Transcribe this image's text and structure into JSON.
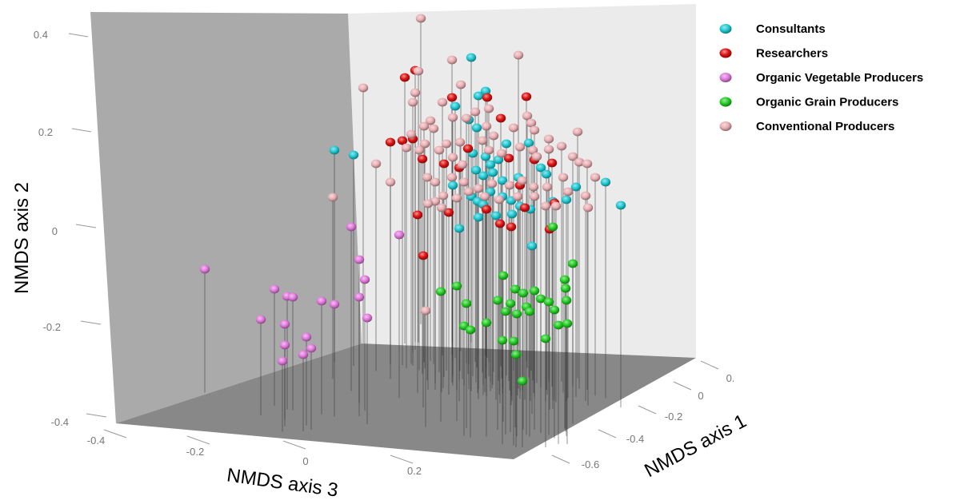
{
  "chart_data": {
    "type": "scatter",
    "subtype": "3d-scatter-with-drop-lines",
    "title": "",
    "xlabel": "NMDS axis 3",
    "ylabel": "NMDS axis 2",
    "zlabel": "NMDS axis 1",
    "x_ticks": [
      "-0.4",
      "-0.2",
      "0",
      "0.2"
    ],
    "y_ticks": [
      "0.4",
      "0.2",
      "0",
      "-0.2",
      "-0.4"
    ],
    "z_ticks": [
      "0.",
      "0",
      "-0.2",
      "-0.4",
      "-0.6"
    ],
    "ylim": [
      -0.4,
      0.45
    ],
    "legend_position": "top-right",
    "series": [
      {
        "name": "Consultants",
        "color": "#1ec8d2",
        "points": [
          [
            418,
            188
          ],
          [
            442,
            194
          ],
          [
            589,
            72
          ],
          [
            607,
            114
          ],
          [
            598,
            120
          ],
          [
            569,
            133
          ],
          [
            586,
            150
          ],
          [
            596,
            160
          ],
          [
            633,
            180
          ],
          [
            661,
            179
          ],
          [
            591,
            192
          ],
          [
            607,
            196
          ],
          [
            613,
            206
          ],
          [
            623,
            200
          ],
          [
            595,
            213
          ],
          [
            604,
            220
          ],
          [
            616,
            216
          ],
          [
            628,
            226
          ],
          [
            648,
            222
          ],
          [
            676,
            210
          ],
          [
            683,
            218
          ],
          [
            566,
            232
          ],
          [
            589,
            246
          ],
          [
            597,
            252
          ],
          [
            613,
            240
          ],
          [
            628,
            246
          ],
          [
            639,
            251
          ],
          [
            650,
            258
          ],
          [
            663,
            262
          ],
          [
            691,
            252
          ],
          [
            708,
            250
          ],
          [
            720,
            234
          ],
          [
            640,
            268
          ],
          [
            620,
            270
          ],
          [
            598,
            272
          ],
          [
            574,
            286
          ],
          [
            757,
            228
          ],
          [
            776,
            257
          ],
          [
            665,
            308
          ],
          [
            604,
            256
          ]
        ]
      },
      {
        "name": "Researchers",
        "color": "#dd1111",
        "points": [
          [
            506,
            97
          ],
          [
            519,
            88
          ],
          [
            565,
            122
          ],
          [
            609,
            122
          ],
          [
            626,
            148
          ],
          [
            658,
            121
          ],
          [
            488,
            178
          ],
          [
            503,
            176
          ],
          [
            516,
            174
          ],
          [
            528,
            199
          ],
          [
            555,
            205
          ],
          [
            574,
            210
          ],
          [
            585,
            186
          ],
          [
            636,
            198
          ],
          [
            668,
            200
          ],
          [
            690,
            204
          ],
          [
            693,
            254
          ],
          [
            687,
            287
          ],
          [
            608,
            262
          ],
          [
            625,
            280
          ],
          [
            639,
            284
          ],
          [
            656,
            260
          ],
          [
            522,
            269
          ],
          [
            561,
            266
          ],
          [
            529,
            320
          ],
          [
            650,
            232
          ]
        ]
      },
      {
        "name": "Organic Vegetable Producers",
        "color": "#e078dc",
        "points": [
          [
            256,
            337
          ],
          [
            499,
            294
          ],
          [
            439,
            284
          ],
          [
            449,
            325
          ],
          [
            456,
            350
          ],
          [
            343,
            362
          ],
          [
            359,
            371
          ],
          [
            366,
            372
          ],
          [
            402,
            377
          ],
          [
            418,
            381
          ],
          [
            449,
            372
          ],
          [
            459,
            398
          ],
          [
            326,
            400
          ],
          [
            356,
            406
          ],
          [
            383,
            422
          ],
          [
            389,
            436
          ],
          [
            379,
            444
          ],
          [
            356,
            432
          ],
          [
            353,
            452
          ]
        ]
      },
      {
        "name": "Organic Grain Producers",
        "color": "#22cc22",
        "points": [
          [
            691,
            284
          ],
          [
            716,
            330
          ],
          [
            706,
            350
          ],
          [
            629,
            345
          ],
          [
            571,
            358
          ],
          [
            551,
            365
          ],
          [
            644,
            362
          ],
          [
            654,
            367
          ],
          [
            668,
            364
          ],
          [
            707,
            361
          ],
          [
            583,
            380
          ],
          [
            622,
            376
          ],
          [
            638,
            380
          ],
          [
            658,
            384
          ],
          [
            676,
            374
          ],
          [
            686,
            378
          ],
          [
            708,
            376
          ],
          [
            632,
            390
          ],
          [
            646,
            393
          ],
          [
            662,
            390
          ],
          [
            693,
            388
          ],
          [
            608,
            404
          ],
          [
            580,
            408
          ],
          [
            698,
            407
          ],
          [
            709,
            405
          ],
          [
            588,
            413
          ],
          [
            628,
            426
          ],
          [
            642,
            427
          ],
          [
            682,
            424
          ],
          [
            645,
            444
          ],
          [
            653,
            477
          ]
        ]
      },
      {
        "name": "Conventional Producers",
        "color": "#e8aeb2",
        "points": [
          [
            526,
            23
          ],
          [
            565,
            75
          ],
          [
            648,
            69
          ],
          [
            523,
            89
          ],
          [
            454,
            110
          ],
          [
            519,
            116
          ],
          [
            516,
            128
          ],
          [
            553,
            128
          ],
          [
            576,
            106
          ],
          [
            594,
            140
          ],
          [
            611,
            136
          ],
          [
            566,
            147
          ],
          [
            538,
            151
          ],
          [
            583,
            148
          ],
          [
            530,
            158
          ],
          [
            542,
            161
          ],
          [
            514,
            168
          ],
          [
            508,
            185
          ],
          [
            531,
            180
          ],
          [
            558,
            180
          ],
          [
            575,
            178
          ],
          [
            603,
            176
          ],
          [
            617,
            170
          ],
          [
            642,
            160
          ],
          [
            659,
            145
          ],
          [
            664,
            154
          ],
          [
            668,
            163
          ],
          [
            686,
            174
          ],
          [
            702,
            183
          ],
          [
            722,
            165
          ],
          [
            524,
            188
          ],
          [
            549,
            188
          ],
          [
            566,
            197
          ],
          [
            578,
            206
          ],
          [
            611,
            188
          ],
          [
            627,
            192
          ],
          [
            650,
            184
          ],
          [
            666,
            188
          ],
          [
            686,
            187
          ],
          [
            716,
            196
          ],
          [
            724,
            203
          ],
          [
            734,
            205
          ],
          [
            470,
            205
          ],
          [
            488,
            228
          ],
          [
            534,
            222
          ],
          [
            544,
            228
          ],
          [
            565,
            222
          ],
          [
            580,
            228
          ],
          [
            598,
            236
          ],
          [
            615,
            230
          ],
          [
            637,
            232
          ],
          [
            653,
            226
          ],
          [
            667,
            234
          ],
          [
            684,
            234
          ],
          [
            704,
            222
          ],
          [
            710,
            240
          ],
          [
            744,
            222
          ],
          [
            732,
            245
          ],
          [
            554,
            245
          ],
          [
            571,
            248
          ],
          [
            586,
            240
          ],
          [
            606,
            246
          ],
          [
            624,
            250
          ],
          [
            647,
            246
          ],
          [
            668,
            246
          ],
          [
            682,
            258
          ],
          [
            695,
            258
          ],
          [
            735,
            260
          ],
          [
            544,
            252
          ],
          [
            535,
            255
          ],
          [
            552,
            260
          ],
          [
            416,
            247
          ],
          [
            532,
            389
          ],
          [
            671,
            196
          ],
          [
            608,
            158
          ]
        ]
      }
    ]
  }
}
